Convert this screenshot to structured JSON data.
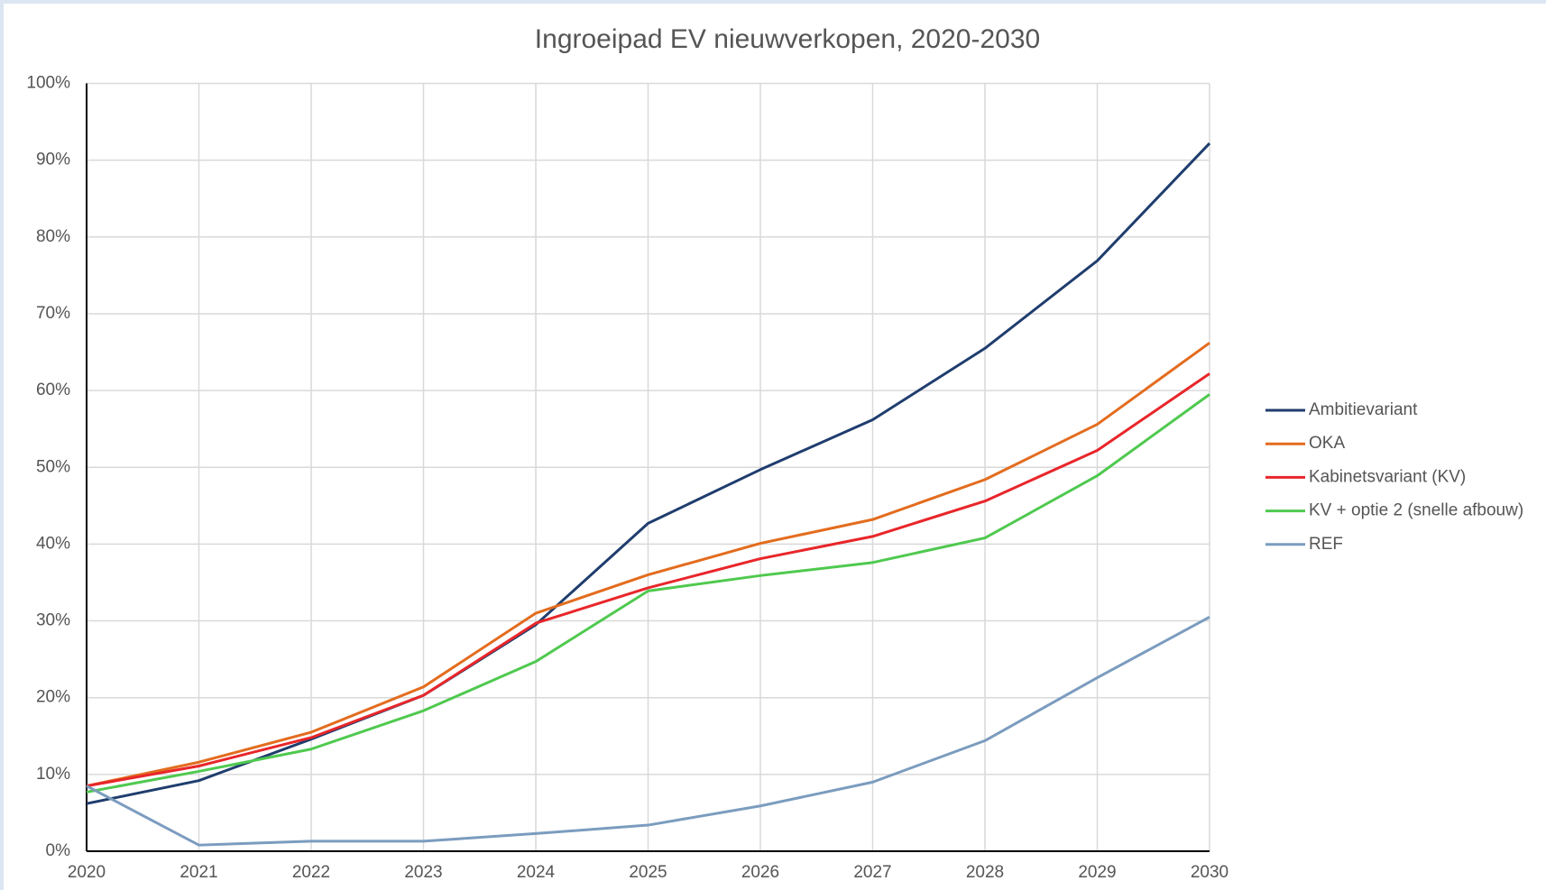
{
  "chart_data": {
    "type": "line",
    "title": "Ingroeipad EV nieuwverkopen, 2020-2030",
    "x": [
      2020,
      2021,
      2022,
      2023,
      2024,
      2025,
      2026,
      2027,
      2028,
      2029,
      2030
    ],
    "xlim": [
      2020,
      2030
    ],
    "xticks": [
      2020,
      2021,
      2022,
      2023,
      2024,
      2025,
      2026,
      2027,
      2028,
      2029,
      2030
    ],
    "ylim": [
      0,
      100
    ],
    "yticks": [
      {
        "value": 0,
        "label": "0%"
      },
      {
        "value": 10,
        "label": "10%"
      },
      {
        "value": 20,
        "label": "20%"
      },
      {
        "value": 30,
        "label": "30%"
      },
      {
        "value": 40,
        "label": "40%"
      },
      {
        "value": 50,
        "label": "50%"
      },
      {
        "value": 60,
        "label": "60%"
      },
      {
        "value": 70,
        "label": "70%"
      },
      {
        "value": 80,
        "label": "80%"
      },
      {
        "value": 90,
        "label": "90%"
      },
      {
        "value": 100,
        "label": "100%"
      }
    ],
    "grid": true,
    "legend": "right",
    "series": [
      {
        "name": "Ambitievariant",
        "color": "#1f3d6e",
        "values": [
          6.2,
          9.2,
          14.6,
          20.3,
          29.5,
          42.7,
          49.7,
          56.2,
          65.5,
          76.9,
          92.2
        ]
      },
      {
        "name": "OKA",
        "color": "#e36c1e",
        "values": [
          8.5,
          11.6,
          15.5,
          21.4,
          31.0,
          36.0,
          40.1,
          43.2,
          48.4,
          55.6,
          66.2
        ]
      },
      {
        "name": "Kabinetsvariant (KV)",
        "color": "#e8262a",
        "values": [
          8.5,
          11.1,
          14.8,
          20.3,
          29.7,
          34.3,
          38.1,
          41.0,
          45.6,
          52.2,
          62.2
        ]
      },
      {
        "name": "KV + optie 2 (snelle afbouw)",
        "color": "#4fc94f",
        "values": [
          7.7,
          10.4,
          13.3,
          18.3,
          24.7,
          33.9,
          35.9,
          37.6,
          40.8,
          48.9,
          59.5
        ]
      },
      {
        "name": "REF",
        "color": "#7b9cbf",
        "values": [
          8.5,
          0.8,
          1.3,
          1.3,
          2.3,
          3.4,
          5.9,
          9.0,
          14.4,
          22.6,
          30.5
        ]
      }
    ]
  }
}
